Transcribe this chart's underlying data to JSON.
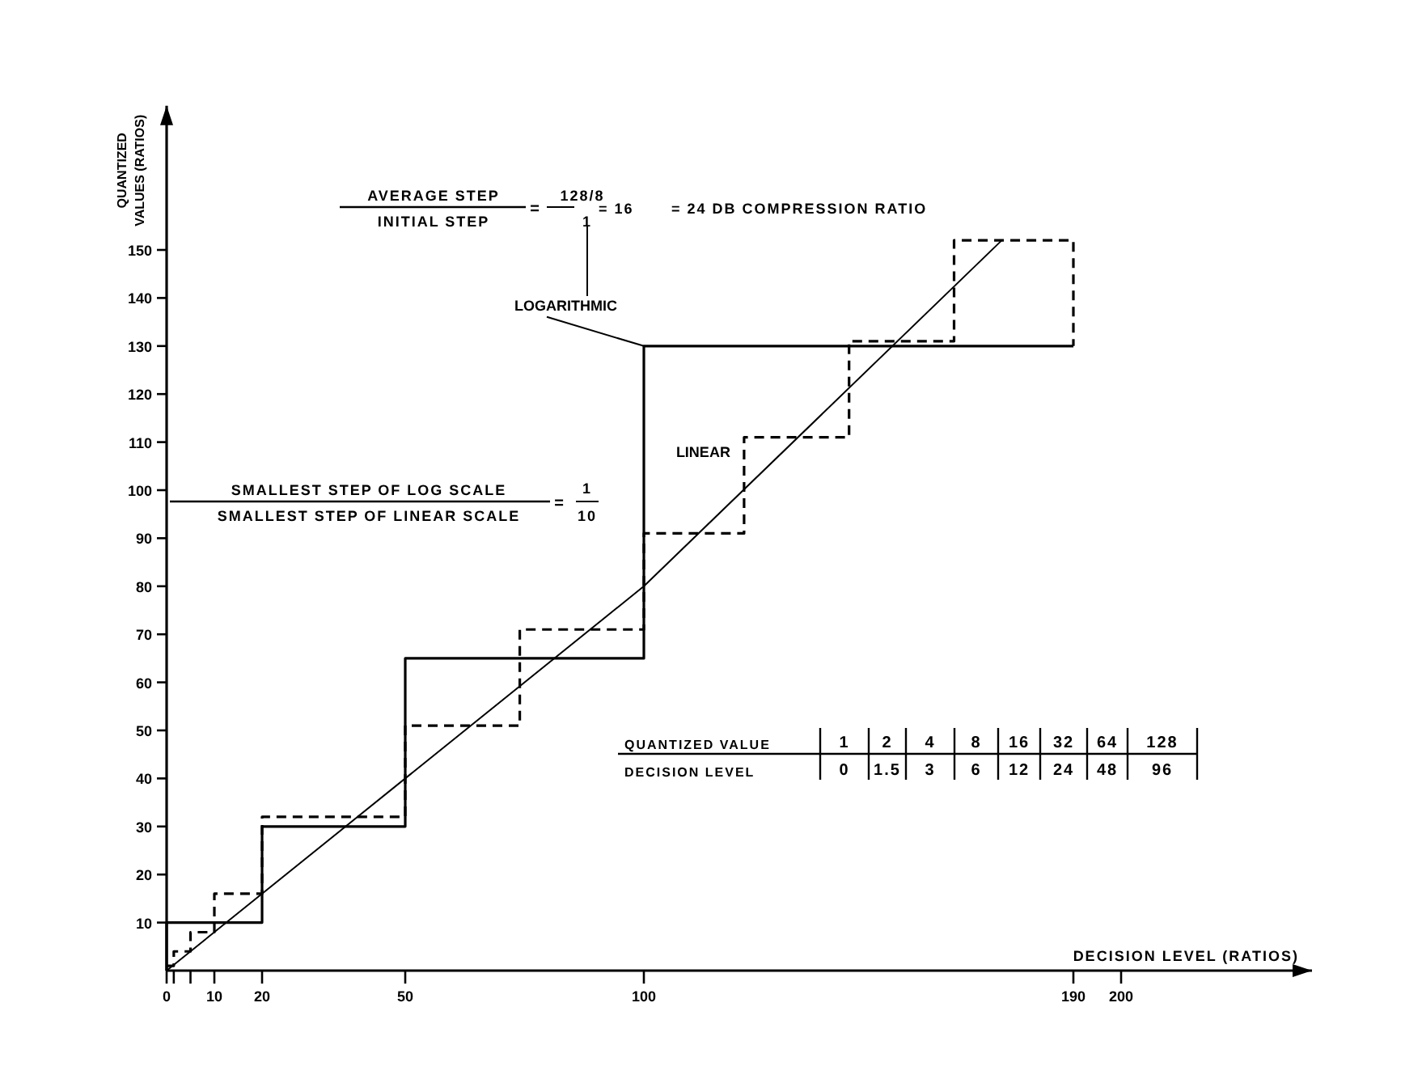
{
  "chart_data": {
    "type": "step",
    "xlabel": "DECISION LEVEL (RATIOS)",
    "ylabel": "QUANTIZED VALUES (RATIOS)",
    "xlim": [
      0,
      240
    ],
    "ylim": [
      0,
      180
    ],
    "xticks": [
      0,
      {
        "value": 1.5,
        "label": null
      },
      {
        "value": 5,
        "label": null
      },
      10,
      20,
      50,
      100,
      190,
      200
    ],
    "yticks": [
      10,
      20,
      30,
      40,
      50,
      60,
      70,
      80,
      90,
      100,
      110,
      120,
      130,
      140,
      150
    ],
    "grid": false,
    "series": [
      {
        "name": "LOGARITHMIC",
        "color": "#000000",
        "line_style": "solid",
        "x": [
          0,
          0,
          20,
          50,
          100,
          190
        ],
        "values": [
          0,
          10,
          30,
          65,
          130,
          130
        ]
      },
      {
        "name": "LINEAR",
        "color": "#000000",
        "line_style": "dashed",
        "x": [
          0,
          1.5,
          5,
          10,
          20,
          50,
          74,
          100,
          121,
          143,
          165,
          190
        ],
        "values": [
          1,
          4,
          8,
          16,
          32,
          51,
          71,
          91,
          111,
          131,
          152,
          130
        ]
      },
      {
        "type": "line",
        "color": "#000000",
        "line_style": "solid",
        "x": [
          0,
          100,
          175
        ],
        "values": [
          0,
          80,
          152
        ]
      }
    ],
    "annotations": [
      "AVERAGE STEP",
      "INITIAL STEP",
      "=",
      "128/8",
      "1",
      "= 16",
      "= 24 DB COMPRESSION RATIO",
      "SMALLEST STEP OF LOG SCALE",
      "SMALLEST STEP OF LINEAR SCALE",
      "=",
      "1",
      "10",
      "QUANTIZED VALUE",
      "DECISION LEVEL",
      "1",
      "2",
      "4",
      "8",
      "16",
      "32",
      "64",
      "128",
      "0",
      "1.5",
      "3",
      "6",
      "12",
      "24",
      "48",
      "96"
    ]
  }
}
